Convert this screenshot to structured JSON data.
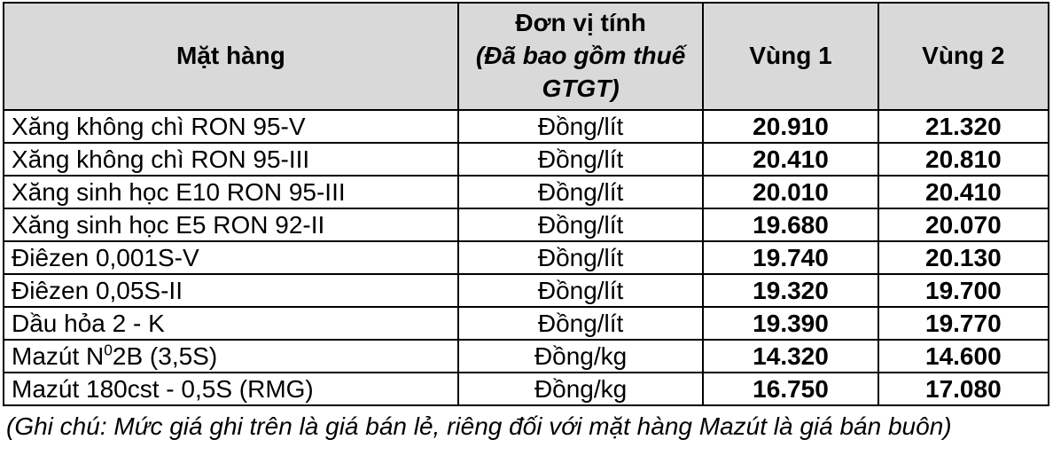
{
  "table": {
    "headers": {
      "product": "Mặt hàng",
      "unit_title": "Đơn vị tính",
      "unit_subtitle": "(Đã bao gồm thuế GTGT)",
      "region1": "Vùng 1",
      "region2": "Vùng 2"
    },
    "rows": [
      {
        "name": "Xăng không chì RON 95-V",
        "unit": "Đồng/lít",
        "region1": "20.910",
        "region2": "21.320"
      },
      {
        "name": "Xăng không chì RON 95-III",
        "unit": "Đồng/lít",
        "region1": "20.410",
        "region2": "20.810"
      },
      {
        "name": "Xăng sinh học E10 RON 95-III",
        "unit": "Đồng/lít",
        "region1": "20.010",
        "region2": "20.410"
      },
      {
        "name": "Xăng sinh học E5 RON 92-II",
        "unit": "Đồng/lít",
        "region1": "19.680",
        "region2": "20.070"
      },
      {
        "name": "Điêzen 0,001S-V",
        "unit": "Đồng/lít",
        "region1": "19.740",
        "region2": "20.130"
      },
      {
        "name": "Điêzen 0,05S-II",
        "unit": "Đồng/lít",
        "region1": "19.320",
        "region2": "19.700"
      },
      {
        "name": "Dầu hỏa 2 - K",
        "unit": "Đồng/lít",
        "region1": "19.390",
        "region2": "19.770"
      },
      {
        "name_pre": "Mazút N",
        "name_sup": "0",
        "name_post": "2B (3,5S)",
        "unit": "Đồng/kg",
        "region1": "14.320",
        "region2": "14.600"
      },
      {
        "name": "Mazút 180cst - 0,5S (RMG)",
        "unit": "Đồng/kg",
        "region1": "16.750",
        "region2": "17.080"
      }
    ],
    "note": "(Ghi chú: Mức giá ghi trên là giá bán lẻ, riêng đối với mặt hàng Mazút là giá bán buôn)"
  },
  "colors": {
    "header_bg": "#d9d9d9",
    "border": "#000000",
    "row_bg": "#ffffff"
  }
}
